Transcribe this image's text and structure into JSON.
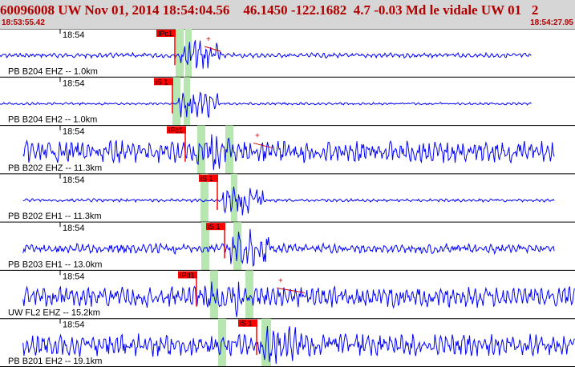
{
  "header": {
    "title": "60096008 UW Nov 01, 2014 18:54:04.56    46.1450 -122.1682  4.7 -0.03 Md le vidale UW 01   2",
    "start_time": "18:53:55.42",
    "end_time": "18:54:27.95"
  },
  "colors": {
    "header_bg": "#d6d6d6",
    "header_text": "#b00000",
    "trace": "#0000ff",
    "pick_box": "#ff0000",
    "pick_band": "#b8e6b0",
    "coda": "#cc0000"
  },
  "tick_label": "18:54",
  "channels": [
    {
      "label": "PB B204 EHZ -- 1.0km",
      "pick": "IPc1",
      "amp": 0.12,
      "start": 0.0,
      "end": 0.925
    },
    {
      "label": "PB B204 EH2 -- 1.0km",
      "pick": "iS 1",
      "amp": 0.06,
      "start": 0.0,
      "end": 0.925
    },
    {
      "label": "PB B202 EHZ -- 11.3km",
      "pick": "IPc1",
      "amp": 0.55,
      "start": 0.04,
      "end": 0.965
    },
    {
      "label": "PB B202 EH1 -- 11.3km",
      "pick": "iS 1",
      "amp": 0.08,
      "start": 0.04,
      "end": 0.965
    },
    {
      "label": "PB B203 EH1 -- 13.0km",
      "pick": "iS 1",
      "amp": 0.25,
      "start": 0.04,
      "end": 0.965
    },
    {
      "label": "UW FL2 EHZ -- 15.2km",
      "pick": "IPd1",
      "amp": 0.5,
      "start": 0.04,
      "end": 1.0
    },
    {
      "label": "PB B201 EH2 -- 19.1km",
      "pick": "iS 1",
      "amp": 0.55,
      "start": 0.04,
      "end": 1.0
    }
  ]
}
